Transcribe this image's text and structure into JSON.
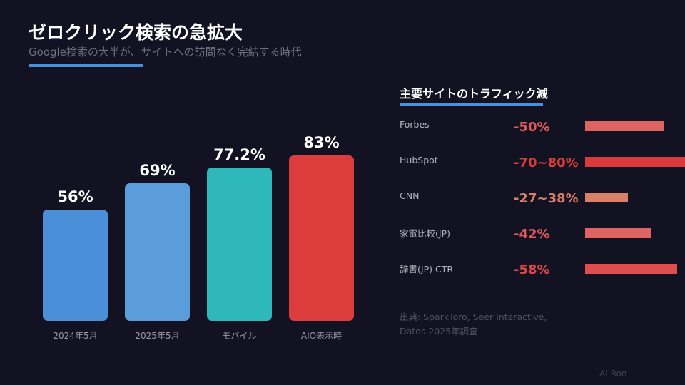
{
  "header": {
    "title": "ゼロクリック検索の急拡大",
    "subtitle": "Google検索の大半が、サイトへの訪問なく完結する時代"
  },
  "chart_data": [
    {
      "type": "bar",
      "categories": [
        "2024年5月",
        "2025年5月",
        "モバイル",
        "AIO表示時"
      ],
      "values": [
        56,
        69,
        77.2,
        83
      ],
      "labels": [
        "56%",
        "69%",
        "77.2%",
        "83%"
      ],
      "colors": [
        "#4a8fd8",
        "#5b9cdb",
        "#2eb8bb",
        "#dc3c3c"
      ],
      "ylim": [
        0,
        100
      ],
      "grid": false
    },
    {
      "type": "bar",
      "orientation": "horizontal",
      "title": "主要サイトのトラフィック減",
      "categories": [
        "Forbes",
        "HubSpot",
        "CNN",
        "家電比較(JP)",
        "辞書(JP) CTR"
      ],
      "labels": [
        "-50%",
        "-70~80%",
        "-27~38%",
        "-42%",
        "-58%"
      ],
      "values": [
        50,
        75,
        32.5,
        42,
        58
      ],
      "bar_values": [
        50,
        80,
        27,
        42,
        58
      ],
      "colors": [
        "#de6464",
        "#dc3a3a",
        "#d9806a",
        "#de6464",
        "#dd4e4e"
      ]
    }
  ],
  "source": {
    "line1": "出典: SparkToro, Seer Interactive,",
    "line2": "Datos 2025年調査"
  },
  "credit": "AI Ron"
}
